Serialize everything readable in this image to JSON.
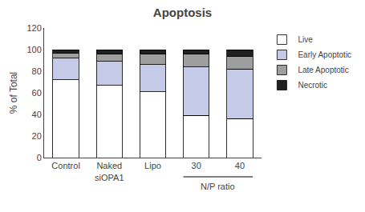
{
  "chart_data": {
    "type": "bar",
    "stacked": true,
    "title": "Apoptosis",
    "ylabel": "% of Total",
    "categories": [
      "Control",
      "Naked\nsiOPA1",
      "Lipo",
      "30",
      "40"
    ],
    "series": [
      {
        "name": "Live",
        "color": "#ffffff",
        "values": [
          72,
          67,
          61,
          39,
          36
        ]
      },
      {
        "name": "Early Apoptotic",
        "color": "#c5cae9",
        "values": [
          20,
          22,
          25,
          45,
          46
        ]
      },
      {
        "name": "Late Apoptotic",
        "color": "#9e9e9e",
        "values": [
          5,
          7,
          10,
          12,
          12
        ]
      },
      {
        "name": "Necrotic",
        "color": "#212121",
        "values": [
          3,
          4,
          4,
          4,
          6
        ]
      }
    ],
    "ylim": [
      0,
      120
    ],
    "yticks": [
      0,
      20,
      40,
      60,
      80,
      100,
      120
    ],
    "grid": false,
    "legend": "upper right",
    "annotations": [
      {
        "text": "N/P ratio",
        "categories": [
          "30",
          "40"
        ]
      }
    ]
  }
}
